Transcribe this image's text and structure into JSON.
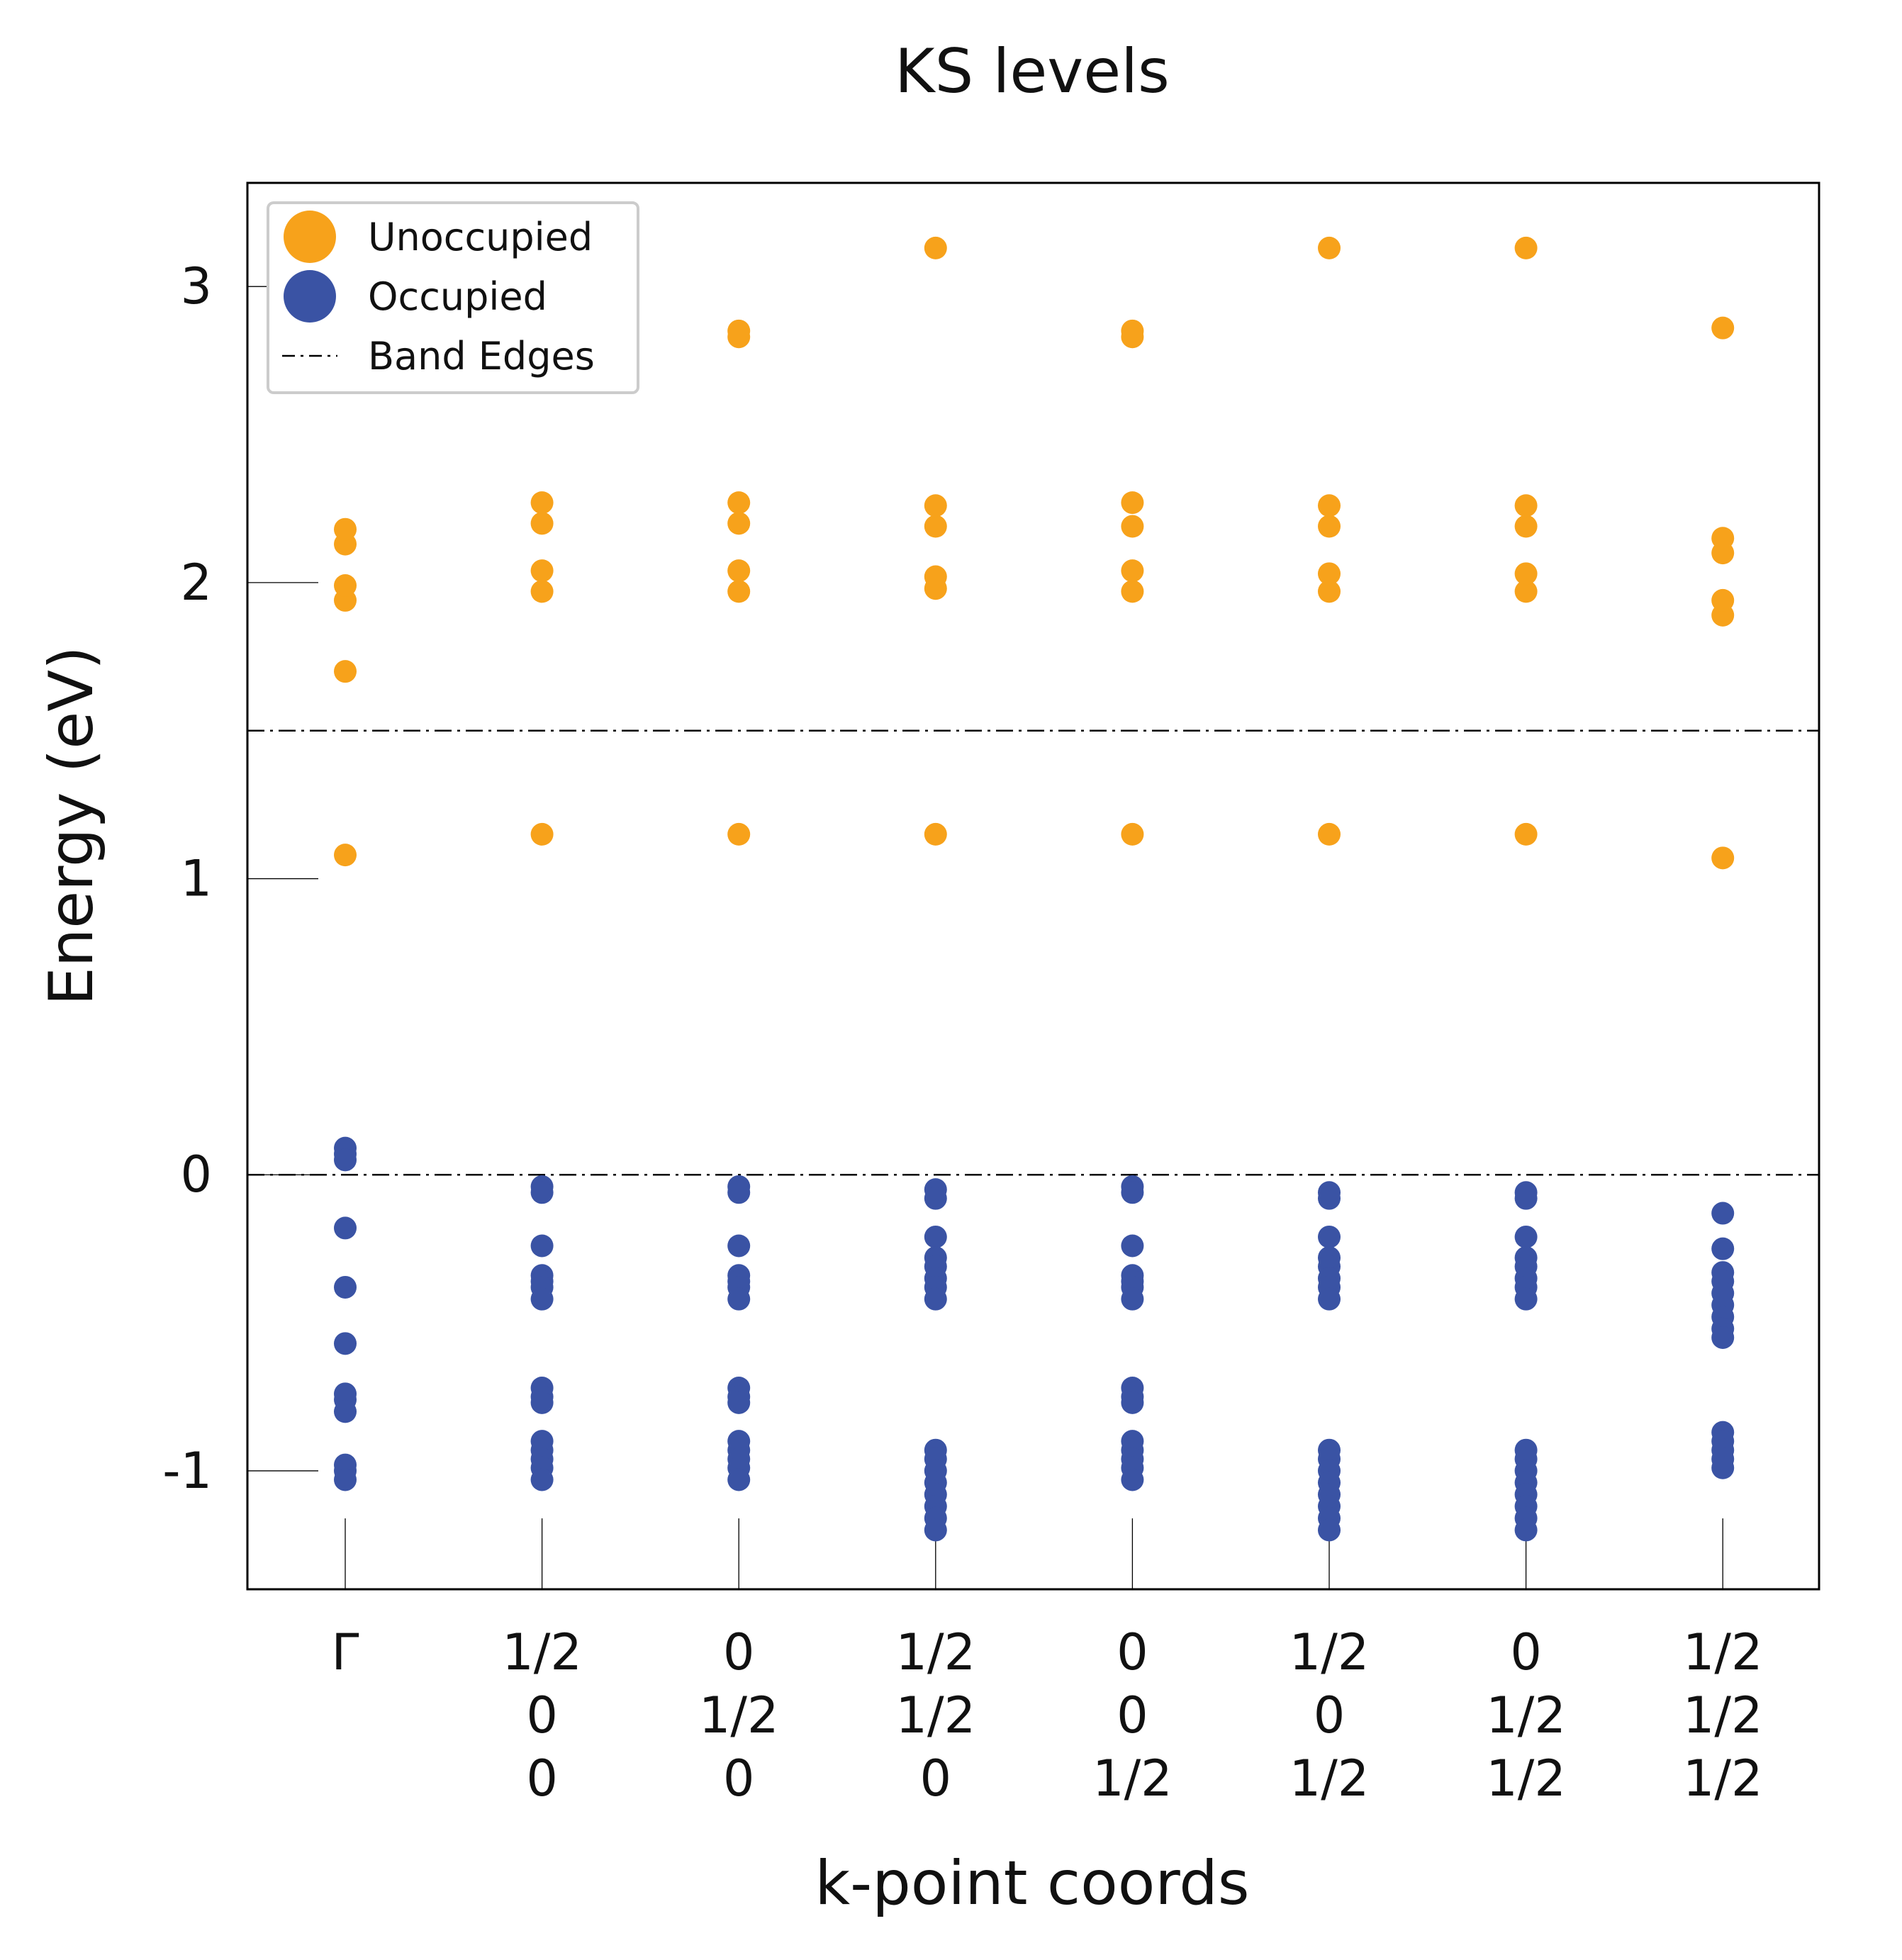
{
  "chart_data": {
    "type": "scatter",
    "title": "KS levels",
    "xlabel": "k-point coords",
    "ylabel": "Energy (eV)",
    "ylim": [
      -1.4,
      3.35
    ],
    "yticks": [
      "3",
      "2",
      "1",
      "0",
      "-1"
    ],
    "ytick_values": [
      3,
      2,
      1,
      0,
      -1
    ],
    "categories": [
      [
        "Γ"
      ],
      [
        "1/2",
        "0",
        "0"
      ],
      [
        "0",
        "1/2",
        "0"
      ],
      [
        "1/2",
        "1/2",
        "0"
      ],
      [
        "0",
        "0",
        "1/2"
      ],
      [
        "1/2",
        "0",
        "1/2"
      ],
      [
        "0",
        "1/2",
        "1/2"
      ],
      [
        "1/2",
        "1/2",
        "1/2"
      ]
    ],
    "band_edges": [
      1.5,
      0.0
    ],
    "legend_position": "top-left",
    "grid": false,
    "colors": {
      "unoccupied": "#F7A21B",
      "occupied": "#3A53A4",
      "band_edges": "#000000"
    },
    "legend": [
      "Unoccupied",
      "Occupied",
      "Band Edges"
    ],
    "series": [
      {
        "name": "Unoccupied",
        "points": [
          [
            [
              0,
              1.08
            ],
            [
              0,
              1.7
            ],
            [
              0,
              1.94
            ],
            [
              0,
              1.99
            ],
            [
              0,
              2.13
            ],
            [
              0,
              2.18
            ]
          ],
          [
            [
              1,
              1.15
            ],
            [
              1,
              1.97
            ],
            [
              1,
              2.04
            ],
            [
              1,
              2.2
            ],
            [
              1,
              2.27
            ],
            [
              1,
              2.85
            ]
          ],
          [
            [
              2,
              1.15
            ],
            [
              2,
              1.97
            ],
            [
              2,
              2.04
            ],
            [
              2,
              2.2
            ],
            [
              2,
              2.27
            ],
            [
              2,
              2.83
            ],
            [
              2,
              2.85
            ]
          ],
          [
            [
              3,
              1.15
            ],
            [
              3,
              1.98
            ],
            [
              3,
              2.02
            ],
            [
              3,
              2.19
            ],
            [
              3,
              2.26
            ],
            [
              3,
              3.13
            ]
          ],
          [
            [
              4,
              1.15
            ],
            [
              4,
              1.97
            ],
            [
              4,
              2.04
            ],
            [
              4,
              2.19
            ],
            [
              4,
              2.27
            ],
            [
              4,
              2.83
            ],
            [
              4,
              2.85
            ]
          ],
          [
            [
              5,
              1.15
            ],
            [
              5,
              1.97
            ],
            [
              5,
              2.03
            ],
            [
              5,
              2.19
            ],
            [
              5,
              2.26
            ],
            [
              5,
              3.13
            ]
          ],
          [
            [
              6,
              1.15
            ],
            [
              6,
              1.97
            ],
            [
              6,
              2.03
            ],
            [
              6,
              2.19
            ],
            [
              6,
              2.26
            ],
            [
              6,
              3.13
            ]
          ],
          [
            [
              7,
              1.07
            ],
            [
              7,
              1.89
            ],
            [
              7,
              1.94
            ],
            [
              7,
              2.1
            ],
            [
              7,
              2.15
            ],
            [
              7,
              2.86
            ]
          ]
        ]
      },
      {
        "name": "Occupied",
        "points": [
          [
            [
              0,
              0.09
            ],
            [
              0,
              0.07
            ],
            [
              0,
              0.05
            ],
            [
              0,
              -0.18
            ],
            [
              0,
              -0.38
            ],
            [
              0,
              -0.57
            ],
            [
              0,
              -0.74
            ],
            [
              0,
              -0.76
            ],
            [
              0,
              -0.8
            ],
            [
              0,
              -0.98
            ],
            [
              0,
              -1.0
            ],
            [
              0,
              -1.03
            ]
          ],
          [
            [
              1,
              -0.04
            ],
            [
              1,
              -0.06
            ],
            [
              1,
              -0.24
            ],
            [
              1,
              -0.34
            ],
            [
              1,
              -0.36
            ],
            [
              1,
              -0.38
            ],
            [
              1,
              -0.42
            ],
            [
              1,
              -0.72
            ],
            [
              1,
              -0.75
            ],
            [
              1,
              -0.77
            ],
            [
              1,
              -0.9
            ],
            [
              1,
              -0.93
            ],
            [
              1,
              -0.96
            ],
            [
              1,
              -0.99
            ],
            [
              1,
              -1.03
            ]
          ],
          [
            [
              2,
              -0.04
            ],
            [
              2,
              -0.06
            ],
            [
              2,
              -0.24
            ],
            [
              2,
              -0.34
            ],
            [
              2,
              -0.36
            ],
            [
              2,
              -0.38
            ],
            [
              2,
              -0.42
            ],
            [
              2,
              -0.72
            ],
            [
              2,
              -0.75
            ],
            [
              2,
              -0.77
            ],
            [
              2,
              -0.9
            ],
            [
              2,
              -0.93
            ],
            [
              2,
              -0.96
            ],
            [
              2,
              -0.99
            ],
            [
              2,
              -1.03
            ]
          ],
          [
            [
              3,
              -0.05
            ],
            [
              3,
              -0.08
            ],
            [
              3,
              -0.21
            ],
            [
              3,
              -0.28
            ],
            [
              3,
              -0.31
            ],
            [
              3,
              -0.35
            ],
            [
              3,
              -0.38
            ],
            [
              3,
              -0.42
            ],
            [
              3,
              -0.93
            ],
            [
              3,
              -0.96
            ],
            [
              3,
              -1.0
            ],
            [
              3,
              -1.04
            ],
            [
              3,
              -1.08
            ],
            [
              3,
              -1.12
            ],
            [
              3,
              -1.16
            ],
            [
              3,
              -1.2
            ]
          ],
          [
            [
              4,
              -0.04
            ],
            [
              4,
              -0.06
            ],
            [
              4,
              -0.24
            ],
            [
              4,
              -0.34
            ],
            [
              4,
              -0.36
            ],
            [
              4,
              -0.38
            ],
            [
              4,
              -0.42
            ],
            [
              4,
              -0.72
            ],
            [
              4,
              -0.75
            ],
            [
              4,
              -0.77
            ],
            [
              4,
              -0.9
            ],
            [
              4,
              -0.93
            ],
            [
              4,
              -0.96
            ],
            [
              4,
              -0.99
            ],
            [
              4,
              -1.03
            ]
          ],
          [
            [
              5,
              -0.06
            ],
            [
              5,
              -0.08
            ],
            [
              5,
              -0.21
            ],
            [
              5,
              -0.28
            ],
            [
              5,
              -0.31
            ],
            [
              5,
              -0.35
            ],
            [
              5,
              -0.38
            ],
            [
              5,
              -0.42
            ],
            [
              5,
              -0.93
            ],
            [
              5,
              -0.96
            ],
            [
              5,
              -1.0
            ],
            [
              5,
              -1.04
            ],
            [
              5,
              -1.08
            ],
            [
              5,
              -1.12
            ],
            [
              5,
              -1.16
            ],
            [
              5,
              -1.2
            ]
          ],
          [
            [
              6,
              -0.06
            ],
            [
              6,
              -0.08
            ],
            [
              6,
              -0.21
            ],
            [
              6,
              -0.28
            ],
            [
              6,
              -0.31
            ],
            [
              6,
              -0.35
            ],
            [
              6,
              -0.38
            ],
            [
              6,
              -0.42
            ],
            [
              6,
              -0.93
            ],
            [
              6,
              -0.96
            ],
            [
              6,
              -1.0
            ],
            [
              6,
              -1.04
            ],
            [
              6,
              -1.08
            ],
            [
              6,
              -1.12
            ],
            [
              6,
              -1.16
            ],
            [
              6,
              -1.2
            ]
          ],
          [
            [
              7,
              -0.13
            ],
            [
              7,
              -0.25
            ],
            [
              7,
              -0.33
            ],
            [
              7,
              -0.36
            ],
            [
              7,
              -0.4
            ],
            [
              7,
              -0.44
            ],
            [
              7,
              -0.48
            ],
            [
              7,
              -0.52
            ],
            [
              7,
              -0.55
            ],
            [
              7,
              -0.87
            ],
            [
              7,
              -0.9
            ],
            [
              7,
              -0.93
            ],
            [
              7,
              -0.96
            ],
            [
              7,
              -0.99
            ]
          ]
        ]
      }
    ]
  }
}
